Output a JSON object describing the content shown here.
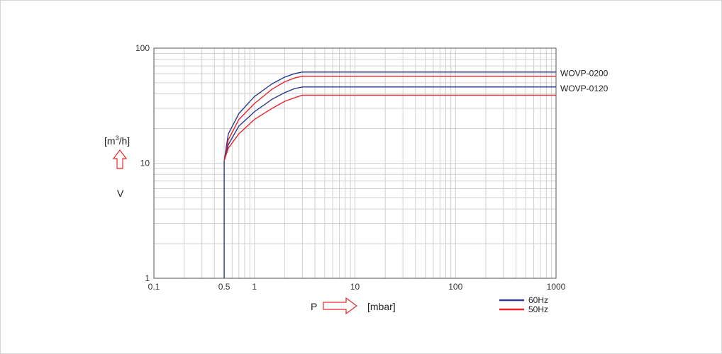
{
  "chart_data": {
    "type": "line",
    "x_scale": "log",
    "y_scale": "log",
    "xlim": [
      0.1,
      1000
    ],
    "ylim": [
      1,
      100
    ],
    "grid": true,
    "x_ticks": [
      {
        "value": 0.1,
        "label": "0.1"
      },
      {
        "value": 0.5,
        "label": "0.5"
      },
      {
        "value": 1,
        "label": "1"
      },
      {
        "value": 10,
        "label": "10"
      },
      {
        "value": 100,
        "label": "100"
      },
      {
        "value": 1000,
        "label": "1000"
      }
    ],
    "y_ticks": [
      {
        "value": 1,
        "label": "1"
      },
      {
        "value": 10,
        "label": "10"
      },
      {
        "value": 100,
        "label": "100"
      }
    ],
    "xlabel": {
      "symbol": "P",
      "unit": "[mbar]"
    },
    "ylabel": {
      "symbol": "V",
      "unit_prefix": "[m",
      "unit_sup": "3",
      "unit_suffix": "/h]"
    },
    "series": [
      {
        "model": "WOVP-0200",
        "name": "60Hz",
        "color": "#2b3990",
        "points": [
          [
            0.5,
            1
          ],
          [
            0.5,
            10.5
          ],
          [
            0.55,
            18
          ],
          [
            0.7,
            27
          ],
          [
            1,
            38
          ],
          [
            1.5,
            49
          ],
          [
            2,
            56
          ],
          [
            2.5,
            60
          ],
          [
            3,
            62
          ],
          [
            5,
            62
          ],
          [
            10,
            62
          ],
          [
            100,
            62
          ],
          [
            1000,
            62
          ]
        ]
      },
      {
        "model": "WOVP-0200",
        "name": "50Hz",
        "color": "#e8262a",
        "points": [
          [
            0.5,
            10.5
          ],
          [
            0.55,
            16
          ],
          [
            0.7,
            24
          ],
          [
            1,
            33
          ],
          [
            1.5,
            44
          ],
          [
            2,
            51
          ],
          [
            2.5,
            55
          ],
          [
            3,
            57
          ],
          [
            5,
            57
          ],
          [
            10,
            57
          ],
          [
            100,
            57
          ],
          [
            1000,
            57
          ]
        ]
      },
      {
        "model": "WOVP-0120",
        "name": "60Hz",
        "color": "#2b3990",
        "points": [
          [
            0.5,
            10.5
          ],
          [
            0.55,
            14.5
          ],
          [
            0.7,
            21
          ],
          [
            1,
            28
          ],
          [
            1.5,
            36
          ],
          [
            2,
            41
          ],
          [
            2.5,
            44.5
          ],
          [
            3,
            46
          ],
          [
            5,
            46
          ],
          [
            10,
            46
          ],
          [
            100,
            46
          ],
          [
            1000,
            46
          ]
        ]
      },
      {
        "model": "WOVP-0120",
        "name": "50Hz",
        "color": "#e8262a",
        "points": [
          [
            0.5,
            10.5
          ],
          [
            0.55,
            13.5
          ],
          [
            0.7,
            18
          ],
          [
            1,
            24
          ],
          [
            1.5,
            30
          ],
          [
            2,
            34.5
          ],
          [
            2.5,
            37
          ],
          [
            3,
            39
          ],
          [
            5,
            39
          ],
          [
            10,
            39
          ],
          [
            100,
            39
          ],
          [
            1000,
            39
          ]
        ]
      }
    ],
    "model_labels": [
      "WOVP-0200",
      "WOVP-0120"
    ],
    "legend": [
      {
        "name": "60Hz",
        "color": "#2b3990"
      },
      {
        "name": "50Hz",
        "color": "#e8262a"
      }
    ],
    "legend_position": "bottom-right",
    "arrow_color": "#e8262a"
  }
}
